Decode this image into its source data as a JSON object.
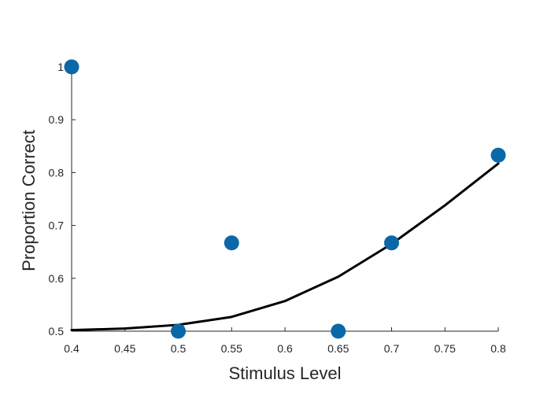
{
  "chart_data": {
    "type": "scatter",
    "title": "",
    "xlabel": "Stimulus Level",
    "ylabel": "Proportion Correct",
    "xlim": [
      0.4,
      0.8
    ],
    "ylim": [
      0.5,
      1.0
    ],
    "x_ticks": [
      "0.4",
      "0.45",
      "0.5",
      "0.55",
      "0.6",
      "0.65",
      "0.7",
      "0.75",
      "0.8"
    ],
    "y_ticks": [
      "0.5",
      "0.6",
      "0.7",
      "0.8",
      "0.9",
      "1"
    ],
    "grid": false,
    "legend": "none",
    "series": [
      {
        "type": "scatter",
        "color": "#0b68a8",
        "x": [
          0.4,
          0.5,
          0.55,
          0.65,
          0.7,
          0.8
        ],
        "y": [
          1.0,
          0.5,
          0.667,
          0.5,
          0.667,
          0.833
        ]
      },
      {
        "type": "line",
        "color": "#000000",
        "x": [
          0.4,
          0.45,
          0.5,
          0.55,
          0.6,
          0.65,
          0.7,
          0.75,
          0.8
        ],
        "y": [
          0.502,
          0.505,
          0.512,
          0.527,
          0.557,
          0.603,
          0.665,
          0.738,
          0.817
        ]
      }
    ]
  }
}
